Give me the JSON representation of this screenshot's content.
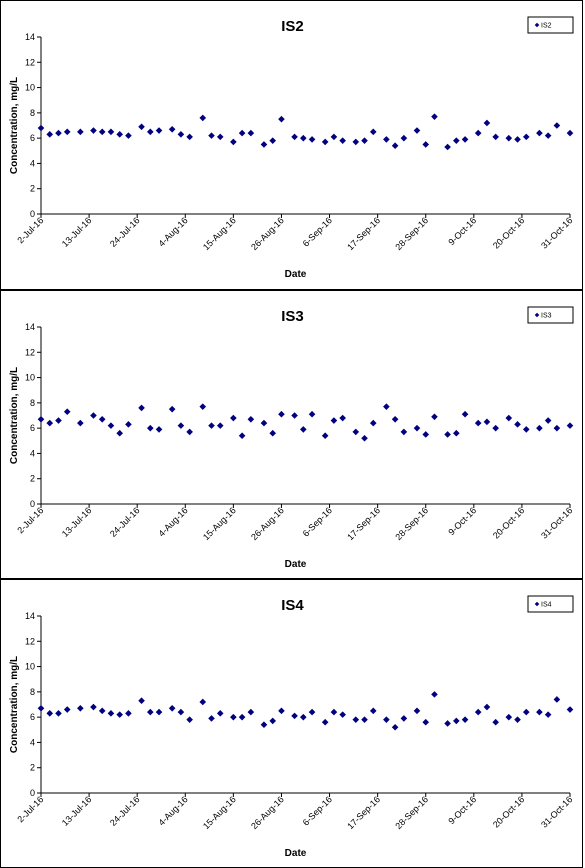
{
  "chart_data": [
    {
      "type": "scatter",
      "title": "IS2",
      "xlabel": "Date",
      "ylabel": "Concentration, mg/L",
      "ylim": [
        0,
        14
      ],
      "yticks": [
        "0",
        "2",
        "4",
        "6",
        "8",
        "10",
        "12",
        "14"
      ],
      "xlim": [
        "2016-07-02",
        "2016-10-31"
      ],
      "xticks": [
        "2-Jul-16",
        "13-Jul-16",
        "24-Jul-16",
        "4-Aug-16",
        "15-Aug-16",
        "26-Aug-16",
        "6-Sep-16",
        "17-Sep-16",
        "28-Sep-16",
        "9-Oct-16",
        "20-Oct-16",
        "31-Oct-16"
      ],
      "legend_position": "top-right",
      "marker_color": "#000080",
      "series": [
        {
          "name": "IS2",
          "x": [
            "2016-07-02",
            "2016-07-04",
            "2016-07-06",
            "2016-07-08",
            "2016-07-11",
            "2016-07-14",
            "2016-07-16",
            "2016-07-18",
            "2016-07-20",
            "2016-07-22",
            "2016-07-25",
            "2016-07-27",
            "2016-07-29",
            "2016-08-01",
            "2016-08-03",
            "2016-08-05",
            "2016-08-08",
            "2016-08-10",
            "2016-08-12",
            "2016-08-15",
            "2016-08-17",
            "2016-08-19",
            "2016-08-22",
            "2016-08-24",
            "2016-08-26",
            "2016-08-29",
            "2016-08-31",
            "2016-09-02",
            "2016-09-05",
            "2016-09-07",
            "2016-09-09",
            "2016-09-12",
            "2016-09-14",
            "2016-09-16",
            "2016-09-19",
            "2016-09-21",
            "2016-09-23",
            "2016-09-26",
            "2016-09-28",
            "2016-09-30",
            "2016-10-03",
            "2016-10-05",
            "2016-10-07",
            "2016-10-10",
            "2016-10-12",
            "2016-10-14",
            "2016-10-17",
            "2016-10-19",
            "2016-10-21",
            "2016-10-24",
            "2016-10-26",
            "2016-10-28",
            "2016-10-31"
          ],
          "y": [
            6.8,
            6.3,
            6.4,
            6.5,
            6.5,
            6.6,
            6.5,
            6.5,
            6.3,
            6.2,
            6.9,
            6.5,
            6.6,
            6.7,
            6.3,
            6.1,
            7.6,
            6.2,
            6.1,
            5.7,
            6.4,
            6.4,
            5.5,
            5.8,
            7.5,
            6.1,
            6.0,
            5.9,
            5.7,
            6.1,
            5.8,
            5.7,
            5.8,
            6.5,
            5.9,
            5.4,
            6.0,
            6.6,
            5.5,
            7.7,
            5.3,
            5.8,
            5.9,
            6.4,
            7.2,
            6.1,
            6.0,
            5.9,
            6.1,
            6.4,
            6.2,
            7.0,
            6.4
          ]
        }
      ]
    },
    {
      "type": "scatter",
      "title": "IS3",
      "xlabel": "Date",
      "ylabel": "Concentration, mg/L",
      "ylim": [
        0,
        14
      ],
      "yticks": [
        "0",
        "2",
        "4",
        "6",
        "8",
        "10",
        "12",
        "14"
      ],
      "xlim": [
        "2016-07-02",
        "2016-10-31"
      ],
      "xticks": [
        "2-Jul-16",
        "13-Jul-16",
        "24-Jul-16",
        "4-Aug-16",
        "15-Aug-16",
        "26-Aug-16",
        "6-Sep-16",
        "17-Sep-16",
        "28-Sep-16",
        "9-Oct-16",
        "20-Oct-16",
        "31-Oct-16"
      ],
      "legend_position": "top-right",
      "marker_color": "#000080",
      "series": [
        {
          "name": "IS3",
          "x": [
            "2016-07-02",
            "2016-07-04",
            "2016-07-06",
            "2016-07-08",
            "2016-07-11",
            "2016-07-14",
            "2016-07-16",
            "2016-07-18",
            "2016-07-20",
            "2016-07-22",
            "2016-07-25",
            "2016-07-27",
            "2016-07-29",
            "2016-08-01",
            "2016-08-03",
            "2016-08-05",
            "2016-08-08",
            "2016-08-10",
            "2016-08-12",
            "2016-08-15",
            "2016-08-17",
            "2016-08-19",
            "2016-08-22",
            "2016-08-24",
            "2016-08-26",
            "2016-08-29",
            "2016-08-31",
            "2016-09-02",
            "2016-09-05",
            "2016-09-07",
            "2016-09-09",
            "2016-09-12",
            "2016-09-14",
            "2016-09-16",
            "2016-09-19",
            "2016-09-21",
            "2016-09-23",
            "2016-09-26",
            "2016-09-28",
            "2016-09-30",
            "2016-10-03",
            "2016-10-05",
            "2016-10-07",
            "2016-10-10",
            "2016-10-12",
            "2016-10-14",
            "2016-10-17",
            "2016-10-19",
            "2016-10-21",
            "2016-10-24",
            "2016-10-26",
            "2016-10-28",
            "2016-10-31"
          ],
          "y": [
            6.7,
            6.4,
            6.6,
            7.3,
            6.4,
            7.0,
            6.7,
            6.2,
            5.6,
            6.3,
            7.6,
            6.0,
            5.9,
            7.5,
            6.2,
            5.7,
            7.7,
            6.2,
            6.2,
            6.8,
            5.4,
            6.7,
            6.4,
            5.6,
            7.1,
            7.0,
            5.9,
            7.1,
            5.4,
            6.6,
            6.8,
            5.7,
            5.2,
            6.4,
            7.7,
            6.7,
            5.7,
            6.0,
            5.5,
            6.9,
            5.5,
            5.6,
            7.1,
            6.4,
            6.5,
            6.0,
            6.8,
            6.3,
            5.9,
            6.0,
            6.6,
            6.0,
            6.2
          ]
        }
      ]
    },
    {
      "type": "scatter",
      "title": "IS4",
      "xlabel": "Date",
      "ylabel": "Concentration, mg/L",
      "ylim": [
        0,
        14
      ],
      "yticks": [
        "0",
        "2",
        "4",
        "6",
        "8",
        "10",
        "12",
        "14"
      ],
      "xlim": [
        "2016-07-02",
        "2016-10-31"
      ],
      "xticks": [
        "2-Jul-16",
        "13-Jul-16",
        "24-Jul-16",
        "4-Aug-16",
        "15-Aug-16",
        "26-Aug-16",
        "6-Sep-16",
        "17-Sep-16",
        "28-Sep-16",
        "9-Oct-16",
        "20-Oct-16",
        "31-Oct-16"
      ],
      "legend_position": "top-right",
      "marker_color": "#000080",
      "series": [
        {
          "name": "IS4",
          "x": [
            "2016-07-02",
            "2016-07-04",
            "2016-07-06",
            "2016-07-08",
            "2016-07-11",
            "2016-07-14",
            "2016-07-16",
            "2016-07-18",
            "2016-07-20",
            "2016-07-22",
            "2016-07-25",
            "2016-07-27",
            "2016-07-29",
            "2016-08-01",
            "2016-08-03",
            "2016-08-05",
            "2016-08-08",
            "2016-08-10",
            "2016-08-12",
            "2016-08-15",
            "2016-08-17",
            "2016-08-19",
            "2016-08-22",
            "2016-08-24",
            "2016-08-26",
            "2016-08-29",
            "2016-08-31",
            "2016-09-02",
            "2016-09-05",
            "2016-09-07",
            "2016-09-09",
            "2016-09-12",
            "2016-09-14",
            "2016-09-16",
            "2016-09-19",
            "2016-09-21",
            "2016-09-23",
            "2016-09-26",
            "2016-09-28",
            "2016-09-30",
            "2016-10-03",
            "2016-10-05",
            "2016-10-07",
            "2016-10-10",
            "2016-10-12",
            "2016-10-14",
            "2016-10-17",
            "2016-10-19",
            "2016-10-21",
            "2016-10-24",
            "2016-10-26",
            "2016-10-28",
            "2016-10-31"
          ],
          "y": [
            6.7,
            6.3,
            6.3,
            6.6,
            6.7,
            6.8,
            6.5,
            6.3,
            6.2,
            6.3,
            7.3,
            6.4,
            6.4,
            6.7,
            6.4,
            5.8,
            7.2,
            5.9,
            6.3,
            6.0,
            6.0,
            6.4,
            5.4,
            5.7,
            6.5,
            6.1,
            6.0,
            6.4,
            5.6,
            6.4,
            6.2,
            5.8,
            5.8,
            6.5,
            5.8,
            5.2,
            5.9,
            6.5,
            5.6,
            7.8,
            5.5,
            5.7,
            5.8,
            6.4,
            6.8,
            5.6,
            6.0,
            5.8,
            6.4,
            6.4,
            6.2,
            7.4,
            6.6
          ]
        }
      ]
    }
  ]
}
